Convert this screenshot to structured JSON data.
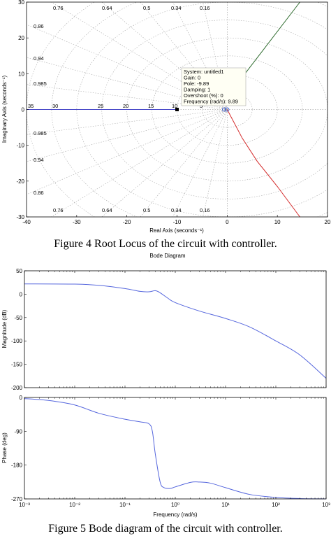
{
  "chart_data": [
    {
      "type": "line",
      "subtype": "root-locus",
      "xlabel": "Real Axis (seconds⁻¹)",
      "ylabel": "Imaginary Axis (seconds⁻¹)",
      "xlim": [
        -40,
        20
      ],
      "ylim": [
        -30,
        30
      ],
      "xticks": [
        -40,
        -30,
        -20,
        -10,
        0,
        10,
        20
      ],
      "yticks": [
        -30,
        -20,
        -10,
        0,
        10,
        20,
        30
      ],
      "grid": "s-plane damping/frequency",
      "damping_labels_top": [
        "0.76",
        "0.64",
        "0.5",
        "0.34",
        "0.16"
      ],
      "damping_labels_bottom": [
        "0.76",
        "0.64",
        "0.5",
        "0.34",
        "0.16"
      ],
      "damping_labels_left": [
        "0.86",
        "0.94",
        "0.985",
        "0.985",
        "0.94",
        "0.86"
      ],
      "frequency_labels": [
        "35",
        "30",
        "25",
        "20",
        "15",
        "10",
        "5"
      ],
      "series": [
        {
          "color": "#2e6b2e",
          "x": [
            3,
            14.5
          ],
          "y": [
            9,
            30
          ]
        },
        {
          "color": "#d42a2a",
          "x": [
            0,
            3,
            6,
            10,
            14.5
          ],
          "y": [
            0,
            -8,
            -14.5,
            -21.5,
            -30
          ]
        },
        {
          "color": "#4a4ac8",
          "x": [
            -40,
            -10
          ],
          "y": [
            0,
            0
          ]
        }
      ],
      "markers": [
        {
          "shape": "square",
          "x": -10,
          "y": 0,
          "color": "#000000"
        },
        {
          "shape": "circle",
          "x": -0.6,
          "y": 0,
          "color": "#3355cc"
        },
        {
          "shape": "circle",
          "x": 0,
          "y": 0,
          "color": "#3355cc"
        }
      ],
      "datatip": [
        "System: untitled1",
        "Gain: 0",
        "Pole: -9.89",
        "Damping: 1",
        "Overshoot (%): 0",
        "Frequency (rad/s): 9.89"
      ],
      "caption": "Figure 4  Root Locus of the circuit with controller."
    },
    {
      "type": "line",
      "subtype": "bode",
      "title": "Bode Diagram",
      "xlabel": "Frequency  (rad/s)",
      "xscale": "log",
      "xlim": [
        0.001,
        1000
      ],
      "xticks": [
        "10⁻³",
        "10⁻²",
        "10⁻¹",
        "10⁰",
        "10¹",
        "10²",
        "10³"
      ],
      "color": "#5566dd",
      "magnitude": {
        "ylabel": "Magnitude (dB)",
        "ylim": [
          -200,
          50
        ],
        "yticks": [
          50,
          0,
          -50,
          -100,
          -150,
          -200
        ],
        "x": [
          0.001,
          0.01,
          0.03,
          0.1,
          0.2,
          0.3,
          0.4,
          0.5,
          0.7,
          1,
          3,
          10,
          30,
          100,
          300,
          1000
        ],
        "y": [
          22,
          21.5,
          19,
          12,
          6,
          5,
          7.5,
          3,
          -8,
          -18,
          -36,
          -52,
          -70,
          -100,
          -130,
          -180
        ]
      },
      "phase": {
        "ylabel": "Phase (deg)",
        "ylim": [
          -270,
          0
        ],
        "yticks": [
          0,
          -90,
          -180,
          -270
        ],
        "x": [
          0.001,
          0.003,
          0.01,
          0.03,
          0.1,
          0.2,
          0.3,
          0.35,
          0.4,
          0.5,
          0.6,
          0.8,
          1,
          2,
          3,
          5,
          10,
          30,
          100,
          300,
          1000
        ],
        "y": [
          -3,
          -8,
          -20,
          -42,
          -58,
          -65,
          -70,
          -90,
          -150,
          -225,
          -240,
          -242,
          -238,
          -226,
          -225,
          -228,
          -240,
          -258,
          -266,
          -269,
          -270
        ]
      },
      "caption": "Figure 5 Bode diagram of the circuit with controller."
    }
  ]
}
